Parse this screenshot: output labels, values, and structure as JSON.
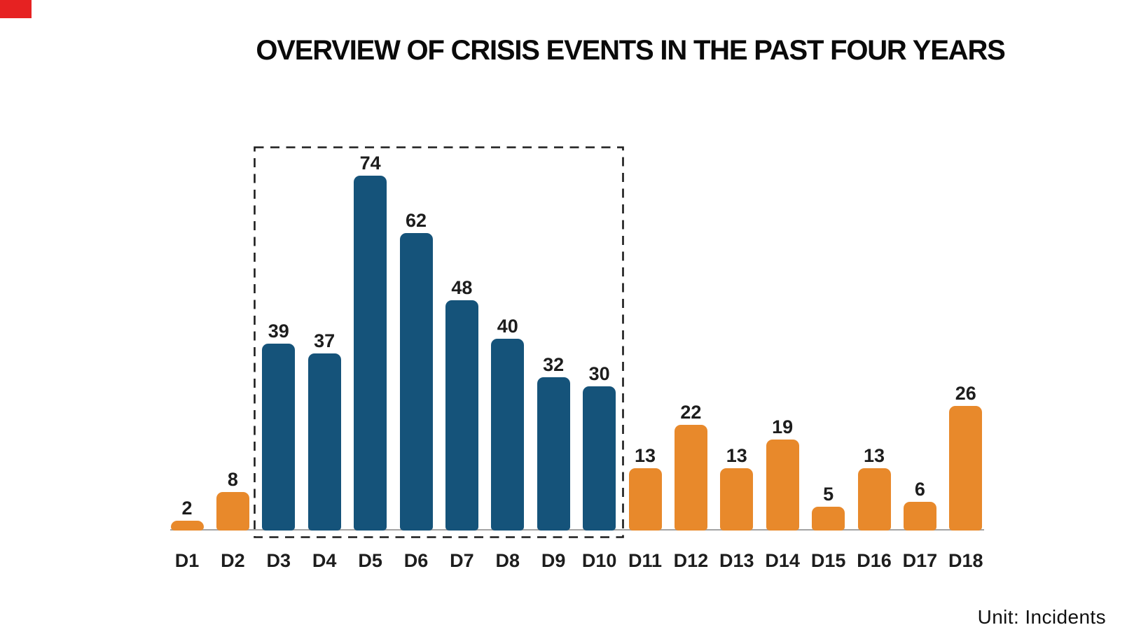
{
  "title": "OVERVIEW OF CRISIS EVENTS IN THE PAST FOUR YEARS",
  "unit_note": "Unit: Incidents",
  "record_marker_color": "#e62222",
  "chart_data": {
    "type": "bar",
    "title": "OVERVIEW OF CRISIS EVENTS IN THE PAST FOUR YEARS",
    "categories": [
      "D1",
      "D2",
      "D3",
      "D4",
      "D5",
      "D6",
      "D7",
      "D8",
      "D9",
      "D10",
      "D11",
      "D12",
      "D13",
      "D14",
      "D15",
      "D16",
      "D17",
      "D18"
    ],
    "values": [
      2,
      8,
      39,
      37,
      74,
      62,
      48,
      40,
      32,
      30,
      13,
      22,
      13,
      19,
      5,
      13,
      6,
      26
    ],
    "value_labels_shown": true,
    "highlighted_categories": [
      "D3",
      "D4",
      "D5",
      "D6",
      "D7",
      "D8",
      "D9",
      "D10"
    ],
    "highlight_style": "dashed-box",
    "unit": "Unit: Incidents",
    "xlabel": "",
    "ylabel": "",
    "ylim": [
      0,
      80
    ],
    "grid": false,
    "legend": "none",
    "palette": {
      "bar_default": "#e8892b",
      "bar_highlight": "#15537a",
      "value_label": "#1d1d1d",
      "category_label": "#1d1d1d",
      "axis_line": "#a3a3a3",
      "highlight_box_border": "#1c1c1c",
      "title_color": "#0a0a0a",
      "background": "#ffffff"
    }
  }
}
